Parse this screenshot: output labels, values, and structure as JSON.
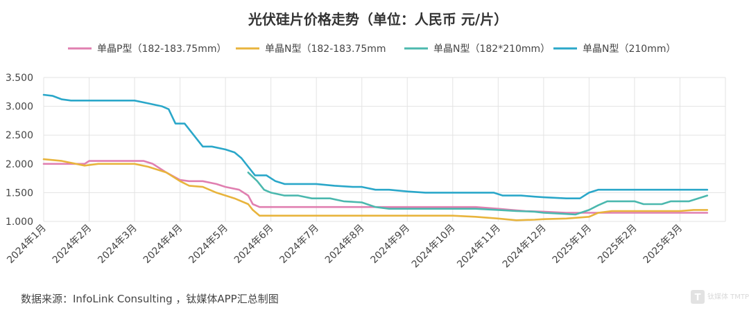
{
  "chart_data": {
    "type": "line",
    "title": "光伏硅片价格走势（单位：人民币 元/片）",
    "source": "数据来源：InfoLink Consulting ，钛媒体APP汇总制图",
    "watermark": "钛媒体 TMTPOST",
    "xlabel": "",
    "ylabel": "",
    "x_range": [
      0,
      15
    ],
    "ylim": [
      1.0,
      3.5
    ],
    "yticks": [
      1.0,
      1.5,
      2.0,
      2.5,
      3.0,
      3.5
    ],
    "ytick_labels": [
      "1.000",
      "1.500",
      "2.000",
      "2.500",
      "3.000",
      "3.500"
    ],
    "categories": [
      "2024年1月",
      "2024年2月",
      "2024年3月",
      "2024年4月",
      "2024年5月",
      "2024年6月",
      "2024年7月",
      "2024年8月",
      "2024年9月",
      "2024年10月",
      "2024年11月",
      "2024年12月",
      "2025年1月",
      "2025年2月",
      "2025年3月"
    ],
    "grid": true,
    "legend_position": "top",
    "series": [
      {
        "name": "单晶P型（182-183.75mm）",
        "color": "#e07fb0",
        "points": [
          [
            0,
            2.0
          ],
          [
            0.5,
            2.0
          ],
          [
            0.9,
            2.0
          ],
          [
            1.0,
            2.05
          ],
          [
            1.5,
            2.05
          ],
          [
            2.0,
            2.05
          ],
          [
            2.2,
            2.05
          ],
          [
            2.4,
            2.0
          ],
          [
            2.7,
            1.85
          ],
          [
            3.0,
            1.72
          ],
          [
            3.2,
            1.7
          ],
          [
            3.5,
            1.7
          ],
          [
            3.8,
            1.65
          ],
          [
            4.0,
            1.6
          ],
          [
            4.3,
            1.55
          ],
          [
            4.5,
            1.45
          ],
          [
            4.6,
            1.3
          ],
          [
            4.75,
            1.25
          ],
          [
            5.0,
            1.25
          ],
          [
            6.0,
            1.25
          ],
          [
            7.0,
            1.25
          ],
          [
            8.0,
            1.25
          ],
          [
            9.0,
            1.25
          ],
          [
            9.5,
            1.25
          ],
          [
            10.0,
            1.22
          ],
          [
            10.3,
            1.2
          ],
          [
            10.6,
            1.18
          ],
          [
            11.0,
            1.17
          ],
          [
            11.5,
            1.15
          ],
          [
            12.0,
            1.15
          ],
          [
            12.5,
            1.15
          ],
          [
            13.0,
            1.15
          ],
          [
            13.5,
            1.15
          ],
          [
            14.0,
            1.15
          ],
          [
            14.6,
            1.15
          ]
        ]
      },
      {
        "name": "单晶N型（182-183.75mm",
        "color": "#e8b43c",
        "points": [
          [
            0,
            2.08
          ],
          [
            0.4,
            2.05
          ],
          [
            0.9,
            1.97
          ],
          [
            1.2,
            2.0
          ],
          [
            2.0,
            2.0
          ],
          [
            2.3,
            1.95
          ],
          [
            2.7,
            1.85
          ],
          [
            3.0,
            1.7
          ],
          [
            3.2,
            1.62
          ],
          [
            3.5,
            1.6
          ],
          [
            3.8,
            1.5
          ],
          [
            4.2,
            1.4
          ],
          [
            4.5,
            1.3
          ],
          [
            4.6,
            1.2
          ],
          [
            4.75,
            1.1
          ],
          [
            5.0,
            1.1
          ],
          [
            6.0,
            1.1
          ],
          [
            7.0,
            1.1
          ],
          [
            8.0,
            1.1
          ],
          [
            9.0,
            1.1
          ],
          [
            9.5,
            1.08
          ],
          [
            10.0,
            1.05
          ],
          [
            10.4,
            1.02
          ],
          [
            10.8,
            1.03
          ],
          [
            11.0,
            1.04
          ],
          [
            11.5,
            1.05
          ],
          [
            12.0,
            1.08
          ],
          [
            12.2,
            1.15
          ],
          [
            12.5,
            1.18
          ],
          [
            13.0,
            1.18
          ],
          [
            14.0,
            1.18
          ],
          [
            14.3,
            1.2
          ],
          [
            14.6,
            1.2
          ]
        ]
      },
      {
        "name": "单晶N型（182*210mm）",
        "color": "#4bb8ae",
        "points": [
          [
            4.5,
            1.85
          ],
          [
            4.7,
            1.7
          ],
          [
            4.85,
            1.55
          ],
          [
            5.0,
            1.5
          ],
          [
            5.3,
            1.45
          ],
          [
            5.6,
            1.45
          ],
          [
            5.9,
            1.4
          ],
          [
            6.3,
            1.4
          ],
          [
            6.6,
            1.35
          ],
          [
            7.0,
            1.33
          ],
          [
            7.3,
            1.25
          ],
          [
            7.6,
            1.22
          ],
          [
            8.0,
            1.22
          ],
          [
            8.5,
            1.22
          ],
          [
            9.0,
            1.22
          ],
          [
            9.5,
            1.22
          ],
          [
            10.0,
            1.2
          ],
          [
            10.4,
            1.18
          ],
          [
            10.8,
            1.17
          ],
          [
            11.0,
            1.15
          ],
          [
            11.5,
            1.13
          ],
          [
            11.7,
            1.12
          ],
          [
            12.0,
            1.2
          ],
          [
            12.2,
            1.28
          ],
          [
            12.4,
            1.35
          ],
          [
            12.7,
            1.35
          ],
          [
            13.0,
            1.35
          ],
          [
            13.2,
            1.3
          ],
          [
            13.6,
            1.3
          ],
          [
            13.8,
            1.35
          ],
          [
            14.2,
            1.35
          ],
          [
            14.4,
            1.4
          ],
          [
            14.6,
            1.45
          ]
        ]
      },
      {
        "name": "单晶N型（210mm）",
        "color": "#2aa7c9",
        "points": [
          [
            0,
            3.2
          ],
          [
            0.2,
            3.18
          ],
          [
            0.4,
            3.12
          ],
          [
            0.6,
            3.1
          ],
          [
            1.0,
            3.1
          ],
          [
            1.5,
            3.1
          ],
          [
            2.0,
            3.1
          ],
          [
            2.3,
            3.05
          ],
          [
            2.6,
            3.0
          ],
          [
            2.75,
            2.95
          ],
          [
            2.9,
            2.7
          ],
          [
            3.1,
            2.7
          ],
          [
            3.3,
            2.5
          ],
          [
            3.5,
            2.3
          ],
          [
            3.7,
            2.3
          ],
          [
            4.0,
            2.25
          ],
          [
            4.2,
            2.2
          ],
          [
            4.35,
            2.1
          ],
          [
            4.5,
            1.95
          ],
          [
            4.65,
            1.8
          ],
          [
            4.9,
            1.8
          ],
          [
            5.1,
            1.7
          ],
          [
            5.3,
            1.65
          ],
          [
            5.7,
            1.65
          ],
          [
            6.0,
            1.65
          ],
          [
            6.4,
            1.62
          ],
          [
            6.8,
            1.6
          ],
          [
            7.0,
            1.6
          ],
          [
            7.3,
            1.55
          ],
          [
            7.6,
            1.55
          ],
          [
            8.0,
            1.52
          ],
          [
            8.4,
            1.5
          ],
          [
            8.8,
            1.5
          ],
          [
            9.0,
            1.5
          ],
          [
            9.5,
            1.5
          ],
          [
            9.9,
            1.5
          ],
          [
            10.1,
            1.45
          ],
          [
            10.5,
            1.45
          ],
          [
            10.8,
            1.43
          ],
          [
            11.0,
            1.42
          ],
          [
            11.5,
            1.4
          ],
          [
            11.8,
            1.4
          ],
          [
            12.0,
            1.5
          ],
          [
            12.2,
            1.55
          ],
          [
            12.5,
            1.55
          ],
          [
            13.0,
            1.55
          ],
          [
            14.0,
            1.55
          ],
          [
            14.6,
            1.55
          ]
        ]
      }
    ]
  }
}
